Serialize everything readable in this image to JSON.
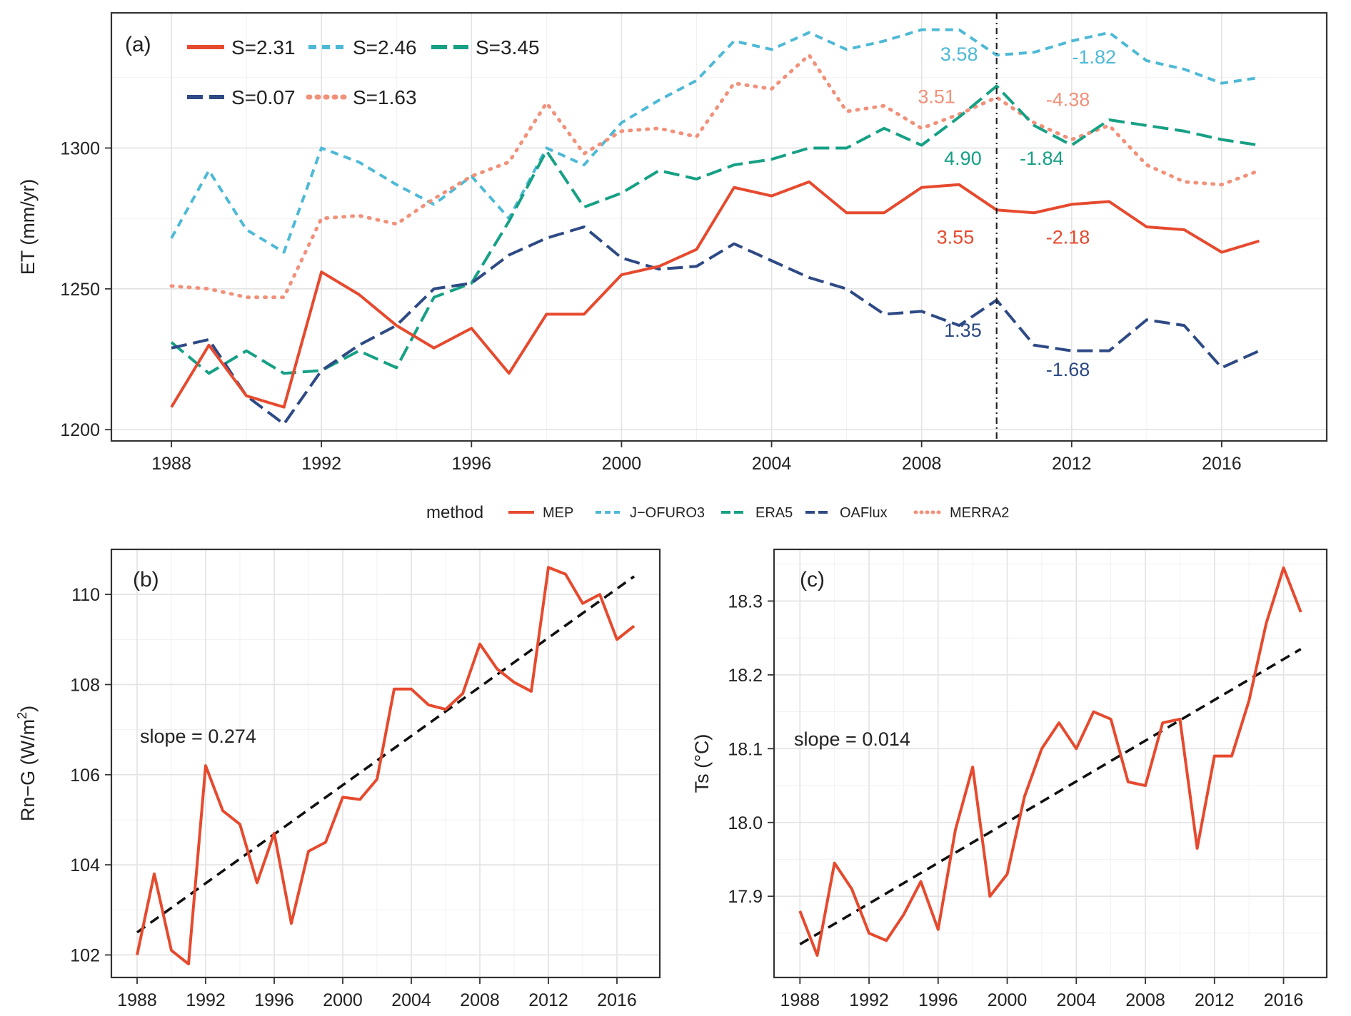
{
  "chart_data": [
    {
      "id": "a",
      "type": "line",
      "panel_label": "(a)",
      "ylabel": "ET (mm/yr)",
      "xlabel": "",
      "x": [
        1988,
        1989,
        1990,
        1991,
        1992,
        1993,
        1994,
        1995,
        1996,
        1997,
        1998,
        1999,
        2000,
        2001,
        2002,
        2003,
        2004,
        2005,
        2006,
        2007,
        2008,
        2009,
        2010,
        2011,
        2012,
        2013,
        2014,
        2015,
        2016,
        2017
      ],
      "xlim": [
        1986.4,
        2018.8
      ],
      "ylim": [
        1196,
        1348
      ],
      "xticks": [
        "1988",
        "1992",
        "1996",
        "2000",
        "2004",
        "2008",
        "2012",
        "2016"
      ],
      "yticks": [
        "1200",
        "1250",
        "1300"
      ],
      "breakpoint_year": 2010,
      "series": [
        {
          "name": "J-OFURO3",
          "color": "#4db9d6",
          "dash": "dash-short",
          "values": [
            1268,
            1292,
            1271,
            1263,
            1300,
            1295,
            1287,
            1280,
            1290,
            1275,
            1300,
            1294,
            1309,
            1317,
            1324,
            1338,
            1335,
            1341,
            1335,
            1338,
            1342,
            1342,
            1333,
            1334,
            1338,
            1341,
            1331,
            1328,
            1323,
            1325
          ]
        },
        {
          "name": "MERRA2",
          "color": "#f1917a",
          "dash": "dot",
          "values": [
            1251,
            1250,
            1247,
            1247,
            1275,
            1276,
            1273,
            1282,
            1290,
            1295,
            1316,
            1298,
            1306,
            1307,
            1304,
            1323,
            1321,
            1333,
            1313,
            1315,
            1307,
            1312,
            1318,
            1309,
            1303,
            1308,
            1294,
            1288,
            1287,
            1292
          ]
        },
        {
          "name": "ERA5",
          "color": "#16a085",
          "dash": "dash-long",
          "values": [
            1231,
            1220,
            1228,
            1220,
            1221,
            1228,
            1222,
            1247,
            1252,
            1274,
            1299,
            1279,
            1284,
            1292,
            1289,
            1294,
            1296,
            1300,
            1300,
            1307,
            1301,
            1311,
            1322,
            1308,
            1301,
            1310,
            1308,
            1306,
            1303,
            1301
          ]
        },
        {
          "name": "OAFlux",
          "color": "#2e4a85",
          "dash": "dash-long",
          "values": [
            1229,
            1232,
            1212,
            1202,
            1221,
            1230,
            1237,
            1250,
            1252,
            1262,
            1268,
            1272,
            1261,
            1257,
            1258,
            1266,
            1260,
            1254,
            1250,
            1241,
            1242,
            1237,
            1246,
            1230,
            1228,
            1228,
            1239,
            1237,
            1222,
            1228
          ]
        },
        {
          "name": "MEP",
          "color": "#e64a2e",
          "dash": "solid",
          "values": [
            1208,
            1230,
            1212,
            1208,
            1256,
            1248,
            1237,
            1229,
            1236,
            1220,
            1241,
            1241,
            1255,
            1258,
            1264,
            1286,
            1283,
            1288,
            1277,
            1277,
            1286,
            1287,
            1278,
            1277,
            1280,
            1281,
            1272,
            1271,
            1263,
            1267
          ]
        }
      ],
      "legend_inset": [
        {
          "text": "S=2.31",
          "color": "#e64a2e",
          "dash": "solid"
        },
        {
          "text": "S=2.46",
          "color": "#4db9d6",
          "dash": "dash-short"
        },
        {
          "text": "S=3.45",
          "color": "#16a085",
          "dash": "dash-long"
        },
        {
          "text": "S=0.07",
          "color": "#2e4a85",
          "dash": "dash-long"
        },
        {
          "text": "S=1.63",
          "color": "#f1917a",
          "dash": "dot"
        }
      ],
      "annotations": [
        {
          "text": "3.58",
          "color": "#4db9d6",
          "x": 2009.0,
          "y": 1331
        },
        {
          "text": "-1.82",
          "color": "#4db9d6",
          "x": 2012.6,
          "y": 1330
        },
        {
          "text": "3.51",
          "color": "#f1917a",
          "x": 2008.4,
          "y": 1316
        },
        {
          "text": "-4.38",
          "color": "#f1917a",
          "x": 2011.9,
          "y": 1315
        },
        {
          "text": "4.90",
          "color": "#16a085",
          "x": 2009.1,
          "y": 1294
        },
        {
          "text": "-1.84",
          "color": "#16a085",
          "x": 2011.2,
          "y": 1294
        },
        {
          "text": "3.55",
          "color": "#e64a2e",
          "x": 2008.9,
          "y": 1266
        },
        {
          "text": "-2.18",
          "color": "#e64a2e",
          "x": 2011.9,
          "y": 1266
        },
        {
          "text": "1.35",
          "color": "#2e4a85",
          "x": 2009.1,
          "y": 1233
        },
        {
          "text": "-1.68",
          "color": "#2e4a85",
          "x": 2011.9,
          "y": 1219
        }
      ]
    },
    {
      "id": "b",
      "type": "line",
      "panel_label": "(b)",
      "ylabel": "Rn−G (W/m",
      "ylabel_sup": "2",
      "ylabel_end": ")",
      "xlabel": "",
      "x": [
        1988,
        1989,
        1990,
        1991,
        1992,
        1993,
        1994,
        1995,
        1996,
        1997,
        1998,
        1999,
        2000,
        2001,
        2002,
        2003,
        2004,
        2005,
        2006,
        2007,
        2008,
        2009,
        2010,
        2011,
        2012,
        2013,
        2014,
        2015,
        2016,
        2017
      ],
      "xlim": [
        1986.5,
        2018.5
      ],
      "ylim": [
        101.5,
        111.0
      ],
      "xticks": [
        "1988",
        "1992",
        "1996",
        "2000",
        "2004",
        "2008",
        "2012",
        "2016"
      ],
      "yticks": [
        "102",
        "104",
        "106",
        "108",
        "110"
      ],
      "slope_label": "slope = 0.274",
      "series": [
        {
          "name": "Rn-G",
          "color": "#e64a2e",
          "dash": "solid",
          "values": [
            102.0,
            103.8,
            102.1,
            101.8,
            106.2,
            105.2,
            104.9,
            103.6,
            104.7,
            102.7,
            104.3,
            104.5,
            105.5,
            105.45,
            105.9,
            107.9,
            107.9,
            107.55,
            107.45,
            107.8,
            108.9,
            108.35,
            108.05,
            107.85,
            110.6,
            110.45,
            109.8,
            110.0,
            109.0,
            109.3
          ]
        }
      ],
      "trend": {
        "x": [
          1988,
          2017
        ],
        "y": [
          102.5,
          110.4
        ]
      }
    },
    {
      "id": "c",
      "type": "line",
      "panel_label": "(c)",
      "ylabel": "Ts (°C)",
      "xlabel": "",
      "x": [
        1988,
        1989,
        1990,
        1991,
        1992,
        1993,
        1994,
        1995,
        1996,
        1997,
        1998,
        1999,
        2000,
        2001,
        2002,
        2003,
        2004,
        2005,
        2006,
        2007,
        2008,
        2009,
        2010,
        2011,
        2012,
        2013,
        2014,
        2015,
        2016,
        2017
      ],
      "xlim": [
        1986.5,
        2018.5
      ],
      "ylim": [
        17.79,
        18.37
      ],
      "xticks": [
        "1988",
        "1992",
        "1996",
        "2000",
        "2004",
        "2008",
        "2012",
        "2016"
      ],
      "yticks": [
        "17.9",
        "18.0",
        "18.1",
        "18.2",
        "18.3"
      ],
      "slope_label": "slope = 0.014",
      "series": [
        {
          "name": "Ts",
          "color": "#e64a2e",
          "dash": "solid",
          "values": [
            17.88,
            17.82,
            17.945,
            17.91,
            17.85,
            17.84,
            17.875,
            17.92,
            17.855,
            17.99,
            18.075,
            17.9,
            17.93,
            18.035,
            18.1,
            18.135,
            18.1,
            18.15,
            18.14,
            18.055,
            18.05,
            18.135,
            18.14,
            17.965,
            18.09,
            18.09,
            18.165,
            18.27,
            18.345,
            18.285
          ]
        }
      ],
      "trend": {
        "x": [
          1988,
          2017
        ],
        "y": [
          17.835,
          18.235
        ]
      }
    }
  ],
  "method_legend": {
    "title": "method",
    "items": [
      {
        "name": "MEP",
        "color": "#e64a2e",
        "dash": "solid"
      },
      {
        "name": "J−OFURO3",
        "color": "#4db9d6",
        "dash": "dash-short"
      },
      {
        "name": "ERA5",
        "color": "#16a085",
        "dash": "dash-long"
      },
      {
        "name": "OAFlux",
        "color": "#2e4a85",
        "dash": "dash-long"
      },
      {
        "name": "MERRA2",
        "color": "#f1917a",
        "dash": "dot"
      }
    ]
  }
}
